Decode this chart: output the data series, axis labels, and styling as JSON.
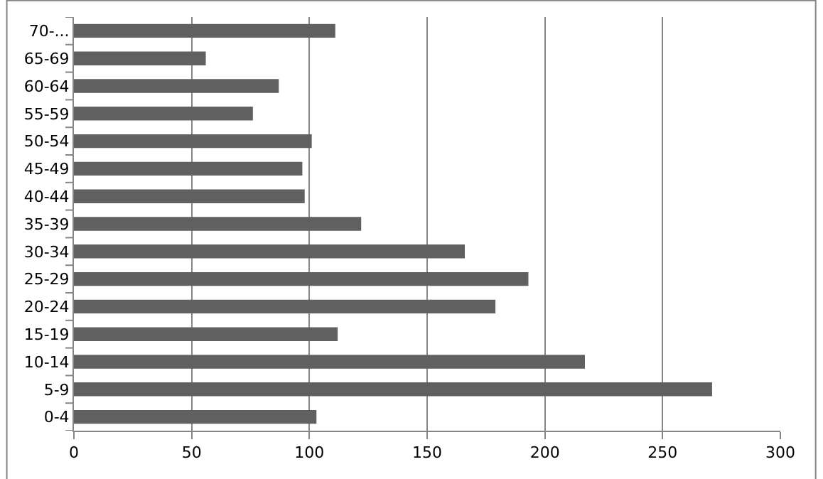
{
  "chart_data": {
    "type": "bar",
    "orientation": "horizontal",
    "categories": [
      "70-...",
      "65-69",
      "60-64",
      "55-59",
      "50-54",
      "45-49",
      "40-44",
      "35-39",
      "30-34",
      "25-29",
      "20-24",
      "15-19",
      "10-14",
      "5-9",
      "0-4"
    ],
    "values": [
      111,
      56,
      87,
      76,
      101,
      97,
      98,
      122,
      166,
      193,
      179,
      112,
      217,
      271,
      103
    ],
    "color": "#606060",
    "xlim": [
      0,
      300
    ],
    "xticks": [
      0,
      50,
      100,
      150,
      200,
      250,
      300
    ],
    "grid": "x",
    "legend": false
  }
}
